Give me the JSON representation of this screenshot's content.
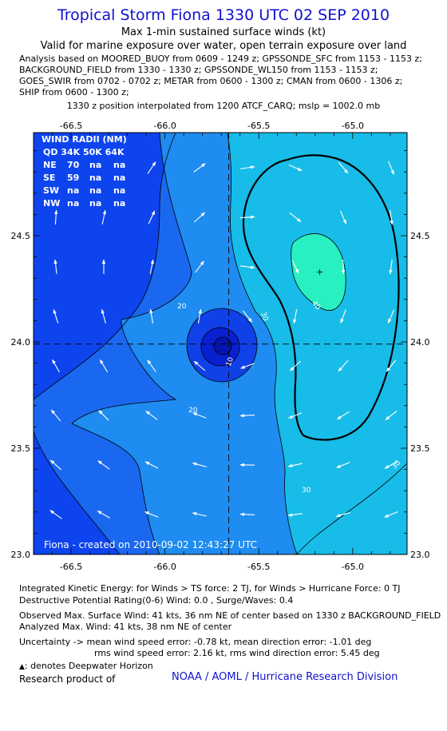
{
  "header": {
    "title": "Tropical Storm Fiona 1330 UTC 02 SEP 2010",
    "subtitle1": "Max 1-min sustained surface winds (kt)",
    "subtitle2": "Valid for marine exposure over water, open terrain exposure over land",
    "analysis_lines": [
      "Analysis based on MOORED_BUOY from 0609 - 1249 z; GPSSONDE_SFC from 1153 - 1153 z;",
      "BACKGROUND_FIELD from 1330 - 1330 z; GPSSONDE_WL150 from 1153 - 1153 z;",
      "GOES_SWIR from 0702 - 0702 z; METAR from 0600 - 1300 z; CMAN from 0600 - 1306 z;",
      "SHIP from 0600 - 1300 z;"
    ],
    "position_note": "1330 z position interpolated from 1200 ATCF_CARQ; mslp = 1002.0 mb"
  },
  "map": {
    "lon_ticks": [
      "-66.5",
      "-66.0",
      "-65.5",
      "-65.0"
    ],
    "lat_ticks": [
      "24.5",
      "24.0",
      "23.5",
      "23.0"
    ],
    "contour_labels": [
      "20",
      "30",
      "40",
      "10",
      "20",
      "30",
      "30"
    ],
    "storm_center": {
      "lon": -65.66,
      "lat": 23.99
    },
    "max_wind_marker": {
      "lon": -65.12,
      "lat": 24.34
    },
    "wind_radii": {
      "title": "WIND RADII (NM)",
      "header": "QD 34K 50K 64K",
      "rows": [
        {
          "qd": "NE",
          "k34": "70",
          "k50": "na",
          "k64": "na"
        },
        {
          "qd": "SE",
          "k34": "59",
          "k50": "na",
          "k64": "na"
        },
        {
          "qd": "SW",
          "k34": "na",
          "k50": "na",
          "k64": "na"
        },
        {
          "qd": "NW",
          "k34": "na",
          "k50": "na",
          "k64": "na"
        }
      ]
    },
    "credit": "Fiona - created on 2010-09-02 12:43:27 UTC",
    "colors": {
      "lt10": "#0d44ee",
      "c10_20": "#1a68f0",
      "c20_30": "#1e8cf0",
      "c30_40": "#18bce8",
      "gt40": "#28f0c0",
      "core_dark": "#0820d0",
      "core_mid": "#1040e8"
    }
  },
  "footer": {
    "ike": "Integrated Kinetic Energy: for Winds > TS force: 2 TJ, for Winds > Hurricane Force: 0 TJ",
    "dpr": "Destructive Potential Rating(0-6) Wind: 0.0 , Surge/Waves: 0.4",
    "observed": "Observed Max. Surface Wind: 41 kts, 36 nm NE of center based on 1330 z BACKGROUND_FIELD",
    "analyzed": "Analyzed Max. Wind: 41 kts, 38 nm NE of center",
    "uncertainty1": "Uncertainty -> mean wind speed error: -0.78 kt, mean direction error: -1.01 deg",
    "uncertainty2": "rms wind speed error: 2.16 kt, rms wind direction error: 5.45 deg",
    "deepwater_symbol": "▲",
    "deepwater": ": denotes Deepwater Horizon",
    "research": "Research product of",
    "noaa": "NOAA / AOML / Hurricane Research Division"
  }
}
